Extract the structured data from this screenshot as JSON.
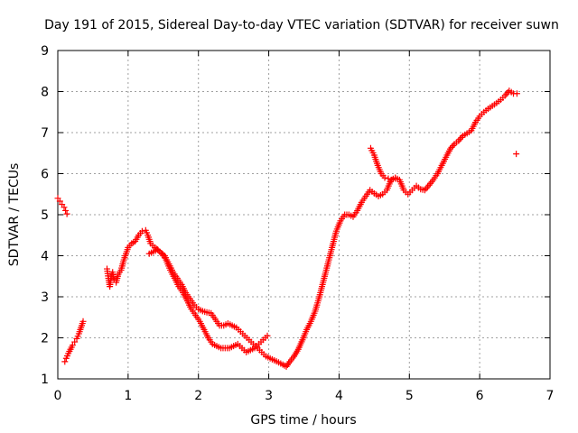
{
  "chart_data": {
    "type": "scatter",
    "title": "Day 191 of 2015, Sidereal Day-to-day VTEC variation (SDTVAR) for receiver suwn",
    "xlabel": "GPS time / hours",
    "ylabel": "SDTVAR / TECUs",
    "xlim": [
      0,
      7
    ],
    "ylim": [
      1,
      9
    ],
    "xticks": [
      "0",
      "1",
      "2",
      "3",
      "4",
      "5",
      "6",
      "7"
    ],
    "yticks": [
      "1",
      "2",
      "3",
      "4",
      "5",
      "6",
      "7",
      "8",
      "9"
    ],
    "grid": true,
    "marker": "+",
    "color": "#ff0000",
    "series": [
      {
        "name": "start",
        "x": [
          0.0,
          0.03,
          0.06,
          0.09,
          0.11,
          0.13
        ],
        "y": [
          5.4,
          5.33,
          5.25,
          5.18,
          5.1,
          5.02
        ]
      },
      {
        "name": "early-rise",
        "x": [
          0.1,
          0.12,
          0.15,
          0.18,
          0.21,
          0.24,
          0.27,
          0.3,
          0.33,
          0.36
        ],
        "y": [
          1.42,
          1.5,
          1.62,
          1.72,
          1.82,
          1.9,
          1.98,
          2.1,
          2.25,
          2.4
        ]
      },
      {
        "name": "main-arc",
        "x": [
          0.7,
          0.72,
          0.74,
          0.76,
          0.78,
          0.8,
          0.83,
          0.86,
          0.9,
          0.94,
          0.97,
          1.0,
          1.05,
          1.1,
          1.15,
          1.2,
          1.25,
          1.28,
          1.32,
          1.38,
          1.45,
          1.52,
          1.58,
          1.64,
          1.7,
          1.76,
          1.82,
          1.88,
          1.94,
          2.0,
          2.06,
          2.12,
          2.18,
          2.24,
          2.3,
          2.36,
          2.42,
          2.48,
          2.54,
          2.6,
          2.66,
          2.72,
          2.78,
          2.84,
          2.9,
          2.96,
          3.02,
          3.08,
          3.14,
          3.2,
          3.25,
          3.3,
          3.36,
          3.42,
          3.48,
          3.54,
          3.6,
          3.66,
          3.72,
          3.78,
          3.84,
          3.9,
          3.96,
          4.02,
          4.08,
          4.14,
          4.2,
          4.26,
          4.32,
          4.38,
          4.44,
          4.5,
          4.56,
          4.62,
          4.68,
          4.74,
          4.8,
          4.86,
          4.92,
          4.98,
          5.04,
          5.1,
          5.16,
          5.22,
          5.28,
          5.34,
          5.4,
          5.46,
          5.52,
          5.58,
          5.64,
          5.7,
          5.76,
          5.82,
          5.88,
          5.94,
          6.0,
          6.06,
          6.12,
          6.18,
          6.24,
          6.3,
          6.36,
          6.42,
          6.48,
          6.53
        ],
        "y": [
          3.68,
          3.45,
          3.25,
          3.5,
          3.6,
          3.42,
          3.35,
          3.55,
          3.65,
          3.9,
          4.05,
          4.2,
          4.3,
          4.35,
          4.5,
          4.6,
          4.62,
          4.5,
          4.3,
          4.2,
          4.1,
          4.0,
          3.8,
          3.6,
          3.45,
          3.3,
          3.1,
          2.95,
          2.8,
          2.7,
          2.65,
          2.62,
          2.6,
          2.45,
          2.3,
          2.3,
          2.35,
          2.3,
          2.25,
          2.15,
          2.05,
          1.95,
          1.85,
          1.75,
          1.65,
          1.55,
          1.5,
          1.45,
          1.4,
          1.35,
          1.3,
          1.42,
          1.55,
          1.72,
          1.95,
          2.2,
          2.4,
          2.65,
          3.0,
          3.4,
          3.8,
          4.2,
          4.6,
          4.85,
          5.0,
          5.0,
          4.95,
          5.1,
          5.3,
          5.45,
          5.6,
          5.52,
          5.45,
          5.5,
          5.6,
          5.85,
          5.9,
          5.85,
          5.6,
          5.5,
          5.6,
          5.7,
          5.62,
          5.6,
          5.72,
          5.85,
          6.0,
          6.2,
          6.4,
          6.6,
          6.72,
          6.8,
          6.92,
          6.98,
          7.05,
          7.25,
          7.4,
          7.5,
          7.58,
          7.65,
          7.72,
          7.8,
          7.9,
          8.02,
          7.95,
          7.95
        ]
      },
      {
        "name": "descending-branch",
        "x": [
          1.3,
          1.36,
          1.42,
          1.48,
          1.54,
          1.6,
          1.66,
          1.72,
          1.78,
          1.84,
          1.9,
          1.96,
          2.02,
          2.08,
          2.14,
          2.2,
          2.26,
          2.32,
          2.38,
          2.44,
          2.5,
          2.56,
          2.62,
          2.68,
          2.74,
          2.8,
          2.86,
          2.92,
          2.98
        ],
        "y": [
          4.05,
          4.1,
          4.15,
          4.05,
          3.9,
          3.65,
          3.45,
          3.25,
          3.1,
          2.9,
          2.7,
          2.55,
          2.4,
          2.2,
          2.0,
          1.85,
          1.8,
          1.75,
          1.75,
          1.75,
          1.8,
          1.85,
          1.75,
          1.65,
          1.7,
          1.75,
          1.85,
          1.95,
          2.05
        ]
      },
      {
        "name": "spike",
        "x": [
          4.45,
          4.5,
          4.55,
          4.6,
          4.65,
          4.7,
          4.75,
          4.8
        ],
        "y": [
          6.62,
          6.45,
          6.2,
          6.0,
          5.9,
          5.88,
          5.85,
          5.88
        ]
      },
      {
        "name": "outlier",
        "x": [
          6.52
        ],
        "y": [
          6.48
        ]
      }
    ]
  }
}
